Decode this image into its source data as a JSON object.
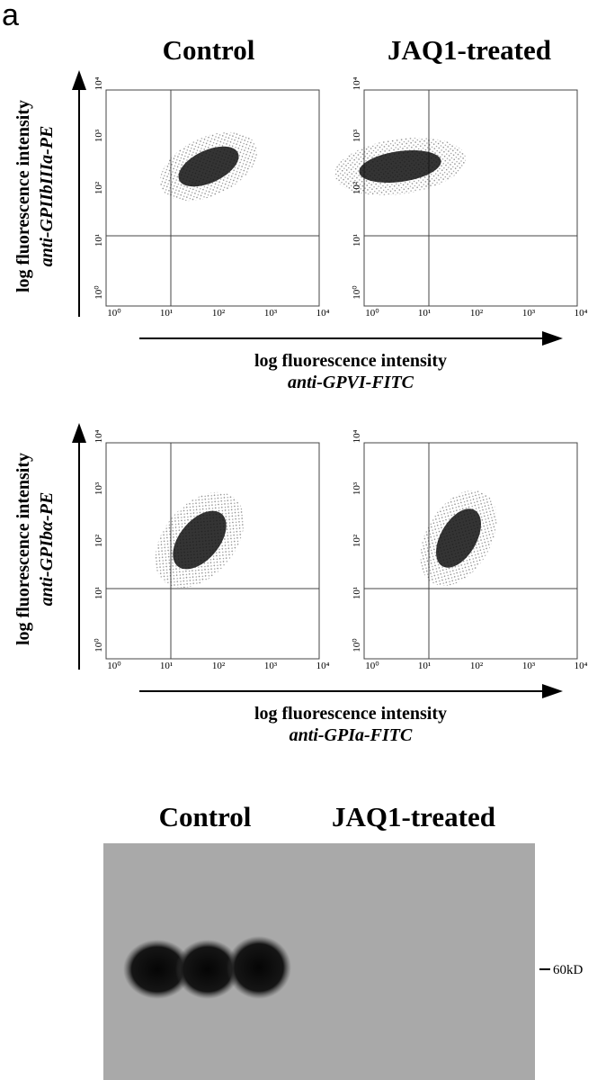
{
  "figure_label": "a",
  "flow_cytometry": {
    "panel_titles": [
      "Control",
      "JAQ1-treated"
    ],
    "axis_ticks": [
      "10⁰",
      "10¹",
      "10²",
      "10³",
      "10⁴"
    ],
    "rows": [
      {
        "y_axis_label": "log fluorescence intensity",
        "y_marker": "anti-GPIIbIIIa-PE",
        "x_axis_label": "log fluorescence intensity",
        "x_marker": "anti-GPVI-FITC"
      },
      {
        "y_axis_label": "log fluorescence intensity",
        "y_marker": "anti-GPIbα-PE",
        "x_axis_label": "log fluorescence intensity",
        "x_marker": "anti-GPIa-FITC"
      }
    ]
  },
  "western_blot": {
    "lane_groups": [
      "Control",
      "JAQ1-treated"
    ],
    "marker": "60kD"
  }
}
